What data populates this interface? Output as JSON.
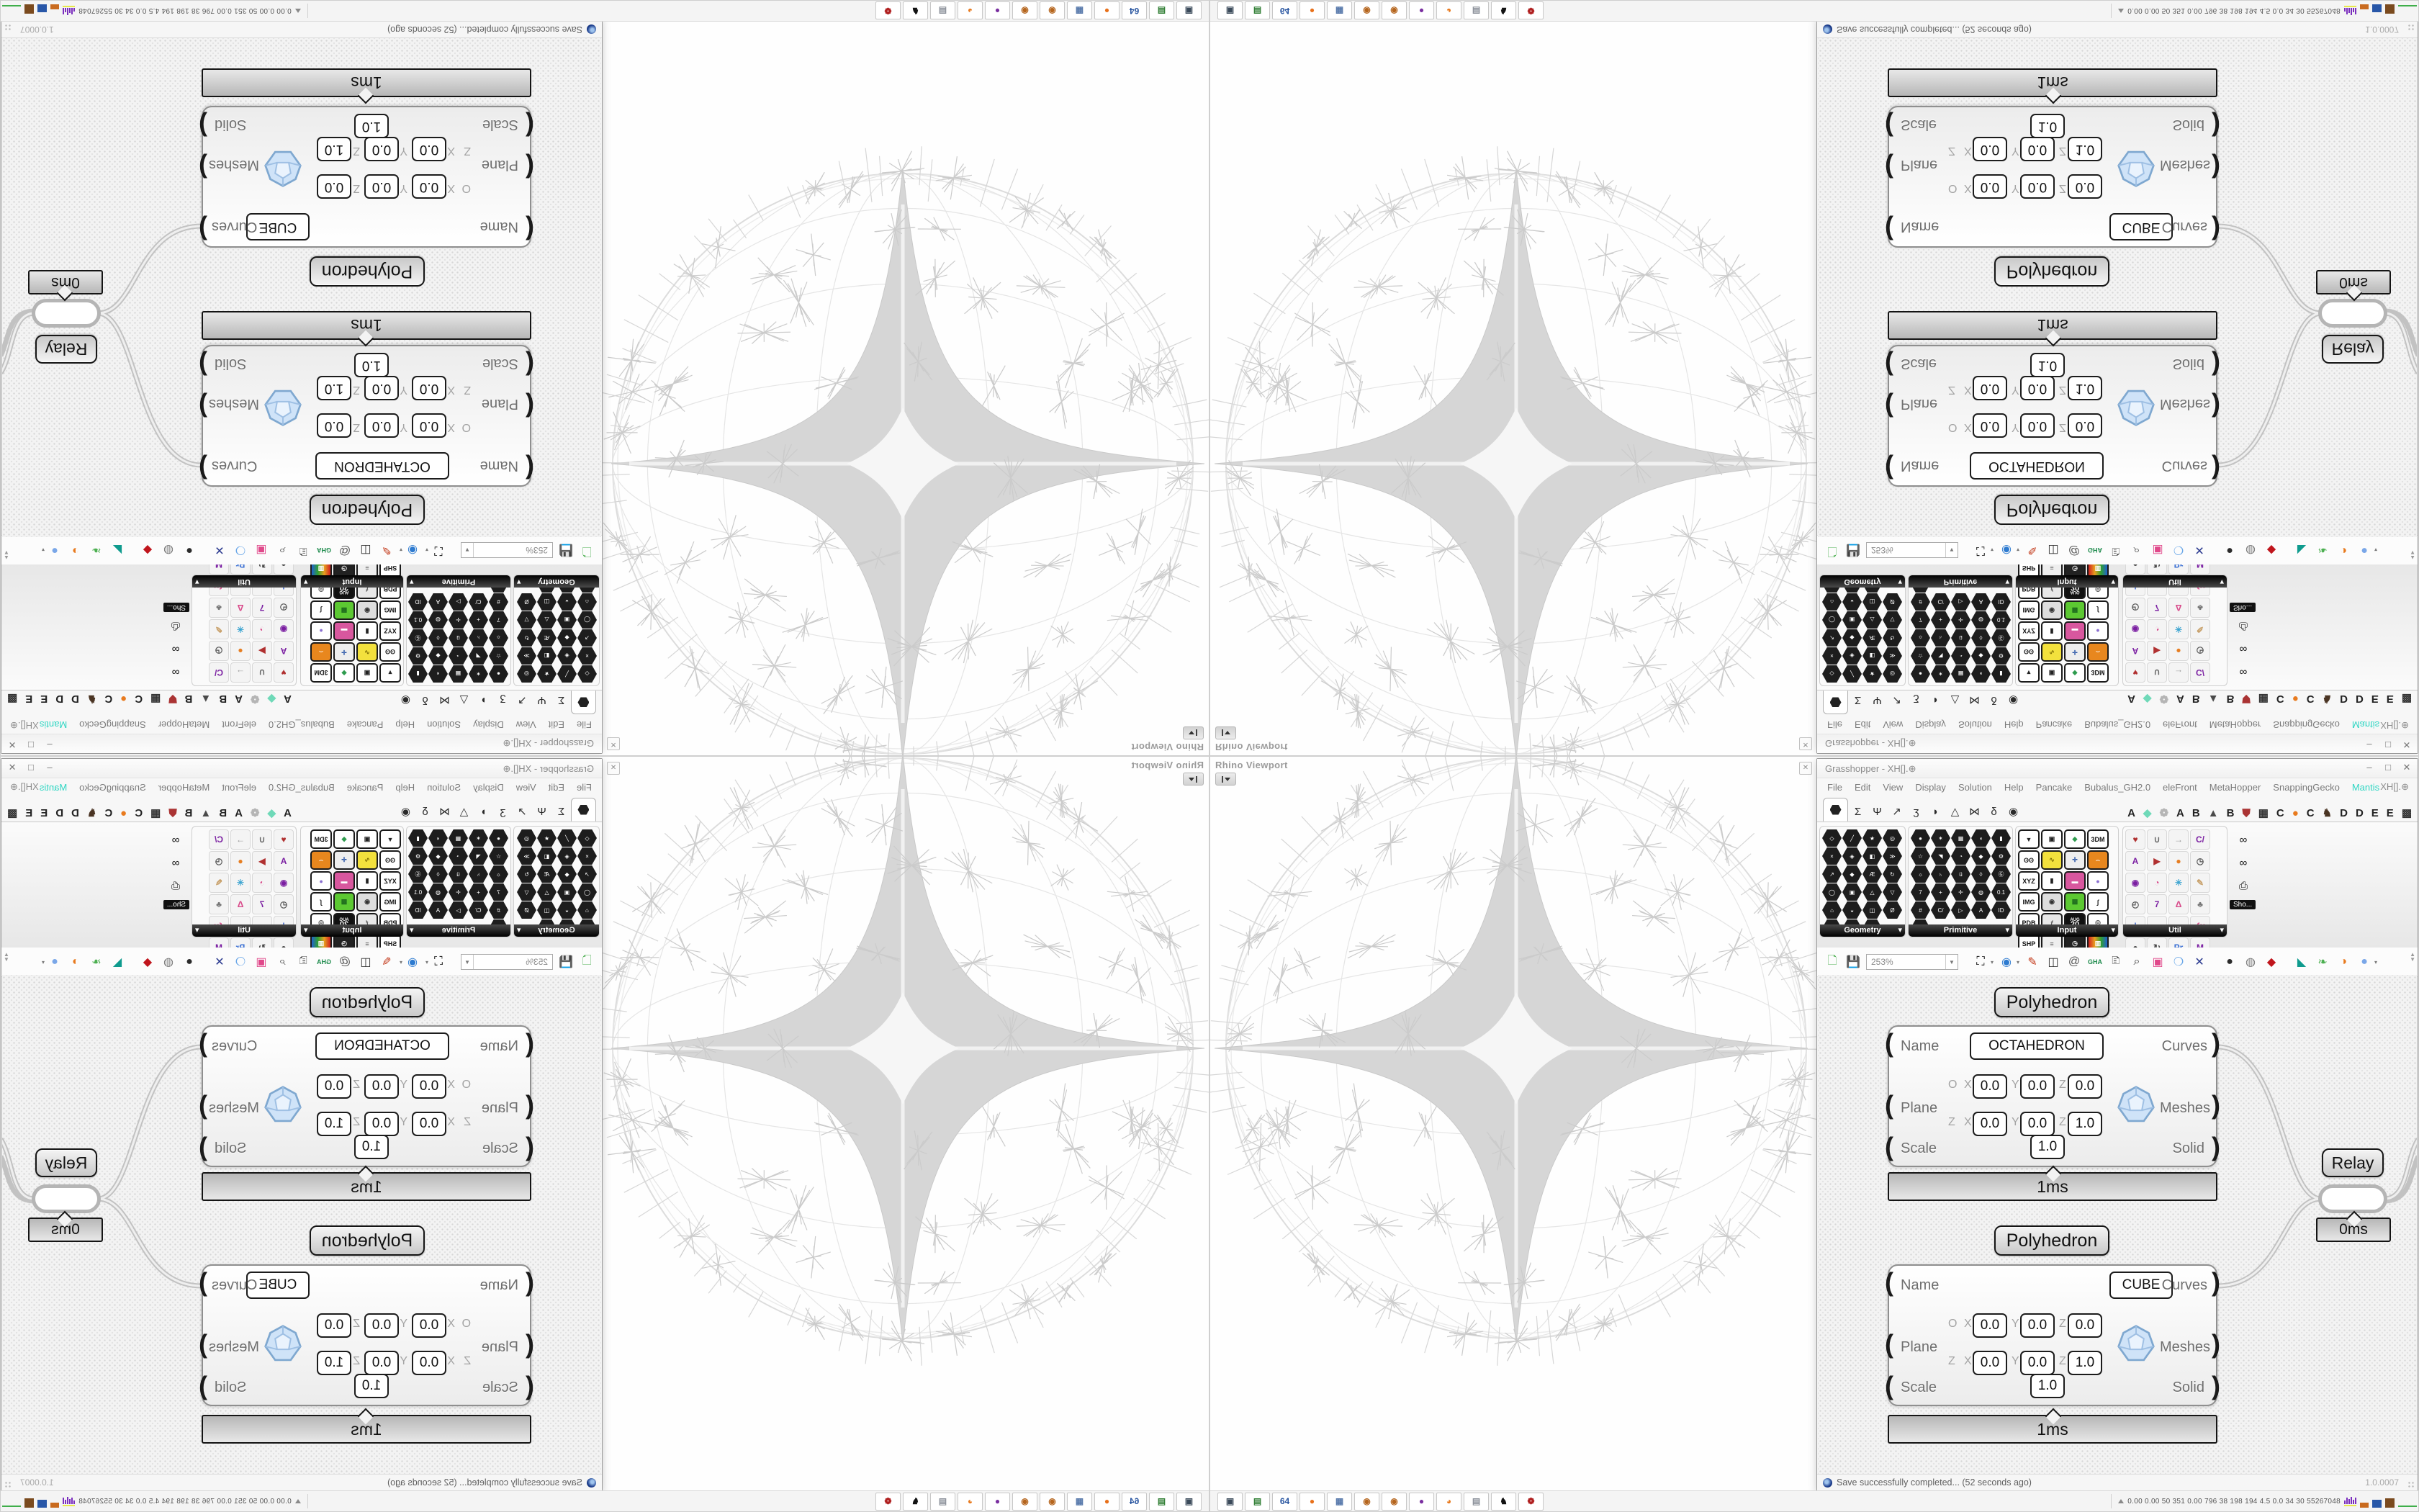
{
  "viewport": {
    "label": "Rhino Viewport"
  },
  "panel_close_glyph": "✕",
  "gh": {
    "title": "Grasshopper - XH[].⊕",
    "win_min": "–",
    "win_max": "□",
    "win_close": "✕",
    "menu": [
      "File",
      "Edit",
      "View",
      "Display",
      "Solution",
      "Help",
      "Pancake",
      "Bubalus_GH2.0",
      "eleFront",
      "MetaHopper",
      "SnappingGecko",
      "Mantis"
    ],
    "menu_right": "XH[].⊕",
    "mantis_color": "#2fd6c3",
    "tabs_main": [
      {
        "name": "params-tab"
      },
      {
        "name": "maths-tab",
        "g": "Σ"
      },
      {
        "name": "sets-tab",
        "g": "Ψ"
      },
      {
        "name": "vector-tab",
        "g": "↗"
      },
      {
        "name": "curve-tab",
        "g": "ʒ"
      },
      {
        "name": "surface-tab",
        "g": "◗"
      },
      {
        "name": "mesh-tab",
        "g": "△"
      },
      {
        "name": "intersect-tab",
        "g": "⋈"
      },
      {
        "name": "transform-tab",
        "g": "δ"
      },
      {
        "name": "display-tab",
        "g": "◉"
      }
    ],
    "tabs_plugins": [
      {
        "g": "A",
        "c": "#222222"
      },
      {
        "g": "◆",
        "c": "#6fd9b8"
      },
      {
        "g": "❁",
        "c": "#b5b5b5"
      },
      {
        "g": "A",
        "c": "#222222"
      },
      {
        "g": "B",
        "c": "#222222"
      },
      {
        "g": "▲",
        "c": "#4a4a4a"
      },
      {
        "g": "B",
        "c": "#222222"
      },
      {
        "g": "⛊",
        "c": "#aa3333"
      },
      {
        "g": "▦",
        "c": "#333333"
      },
      {
        "g": "C",
        "c": "#222222"
      },
      {
        "g": "●",
        "c": "#e87a1e"
      },
      {
        "g": "C",
        "c": "#222222"
      },
      {
        "g": "♞",
        "c": "#4a3423"
      },
      {
        "g": "D",
        "c": "#222222"
      },
      {
        "g": "D",
        "c": "#222222"
      },
      {
        "g": "E",
        "c": "#222222"
      },
      {
        "g": "E",
        "c": "#222222"
      },
      {
        "g": "▩",
        "c": "#333333"
      }
    ],
    "panels": {
      "geometry": {
        "name": "Geometry",
        "glyphs": [
          "◇",
          "╱",
          "★",
          "◎",
          "×",
          "◈",
          "◧",
          "≫",
          "↗",
          "◆",
          "Æ",
          "↻",
          "◯",
          "▣",
          "△",
          "▽",
          "⌂",
          "◒",
          "◫",
          "Ø",
          "◐",
          "✦",
          "⊂"
        ]
      },
      "primitive": {
        "name": "Primitive",
        "glyphs": [
          "●",
          "✶",
          "▦",
          "◖",
          "▮",
          "☆",
          "◥",
          "◔",
          "◆",
          "⚙",
          "☼",
          "♄",
          "ü",
          "◊",
          "Ⓖ",
          "7",
          "+",
          "✛",
          "◍",
          "0.1",
          "#",
          "C/",
          "▷",
          "A",
          "ID",
          "◠"
        ]
      },
      "input": {
        "name": "Input",
        "cells": [
          "slider",
          "frame",
          "gem",
          "3DM",
          "eyes",
          "wave",
          "axes",
          "drip",
          "XYZ",
          "toggle",
          "node",
          "ball",
          "IMG",
          "knob",
          "check",
          "graph",
          "PDB",
          "lever",
          "AUG 20",
          "target",
          "SHP",
          "list",
          "clock",
          "bars",
          "ID."
        ]
      },
      "util": {
        "name": "Util",
        "cells": [
          {
            "g": "♥",
            "c": "#b03030"
          },
          {
            "g": "∪",
            "c": "#666666"
          },
          {
            "g": "→",
            "c": "#999999"
          },
          {
            "g": "C/",
            "c": "#7b1fa2"
          },
          {
            "g": "A",
            "c": "#7b1fa2"
          },
          {
            "g": "▶",
            "c": "#b03030"
          },
          {
            "g": "●",
            "c": "#e67e22"
          },
          {
            "g": "◷",
            "c": "#555555"
          },
          {
            "g": "◉",
            "c": "#7b1fa2"
          },
          {
            "g": "◔",
            "c": "#d84a8a"
          },
          {
            "g": "✳",
            "c": "#3aa3d0"
          },
          {
            "g": "✎",
            "c": "#c8a06a"
          },
          {
            "g": "◴",
            "c": "#555555"
          },
          {
            "g": "7",
            "c": "#7b1fa2"
          },
          {
            "g": "Δ",
            "c": "#d84a8a"
          },
          {
            "g": "♣",
            "c": "#777777"
          },
          {
            "g": "!",
            "c": "#4a6fd0"
          },
          {
            "g": "☁",
            "c": "#9a9890"
          },
          {
            "g": "→",
            "c": "#555555"
          },
          {
            "g": "ƒx",
            "c": "#d84a8a"
          },
          {
            "g": "●",
            "c": "#444444"
          },
          {
            "g": "↻",
            "c": "#444444"
          },
          {
            "g": "Pr",
            "c": "#3a6fd4"
          },
          {
            "g": "M",
            "c": "#7b1fa2"
          },
          {
            "g": "❁",
            "c": "#cc8833"
          },
          {
            "g": "ABC",
            "c": "#333333"
          },
          {
            "g": "→",
            "c": "#888888"
          },
          {
            "g": "Ⓞ",
            "c": "#7b1fa2"
          },
          {
            "g": "Ⓧ",
            "c": "#7b1fa2"
          }
        ]
      },
      "show": {
        "name": "Sho...",
        "glyphs": [
          "∞",
          "∞",
          "⎙"
        ]
      }
    },
    "toolbar": {
      "zoom": "253%",
      "gha_label": "GHA"
    },
    "status": {
      "message": "Save successfully completed... (52 seconds ago)",
      "version": "1.0.0007"
    }
  },
  "canvas": {
    "components": [
      {
        "label": "Polyhedron",
        "name_value": "OCTAHEDRON",
        "in_name": "Name",
        "in_plane": "Plane",
        "in_scale": "Scale",
        "out_curves": "Curves",
        "out_meshes": "Meshes",
        "out_solid": "Solid",
        "o": "O",
        "z": "Z",
        "x": "X",
        "y": "Y",
        "ox": "0.0",
        "oy": "0.0",
        "oz": "0.0",
        "zx": "0.0",
        "zy": "0.0",
        "zz": "1.0",
        "scale_value": "1.0",
        "time": "1ms"
      },
      {
        "label": "Polyhedron",
        "name_value": "CUBE",
        "in_name": "Name",
        "in_plane": "Plane",
        "in_scale": "Scale",
        "out_curves": "Curves",
        "out_meshes": "Meshes",
        "out_solid": "Solid",
        "o": "O",
        "z": "Z",
        "x": "X",
        "y": "Y",
        "ox": "0.0",
        "oy": "0.0",
        "oz": "0.0",
        "zx": "0.0",
        "zy": "0.0",
        "zz": "1.0",
        "scale_value": "1.0",
        "time": "1ms"
      }
    ],
    "relay": {
      "label": "Relay",
      "time": "0ms"
    }
  },
  "taskbar": {
    "apps": [
      {
        "name": "screenshot-app",
        "g": "▣",
        "c": "#3a4a5a"
      },
      {
        "name": "save-manager-app",
        "g": "▤",
        "c": "#2e7d32"
      },
      {
        "name": "c64-floppy-app",
        "g": "64",
        "c": "#2855a0"
      },
      {
        "name": "firefox",
        "g": "●",
        "c": "#e8701a"
      },
      {
        "name": "calculator",
        "g": "▦",
        "c": "#5577aa"
      },
      {
        "name": "paint-app-1",
        "g": "◉",
        "c": "#b5651d"
      },
      {
        "name": "paint-app-2",
        "g": "◉",
        "c": "#b5651d"
      },
      {
        "name": "media-app",
        "g": "●",
        "c": "#7a2fa0"
      },
      {
        "name": "blender",
        "g": "◕",
        "c": "#e87a1e"
      },
      {
        "name": "scanner-app",
        "g": "▤",
        "c": "#8a8f98"
      },
      {
        "name": "cat-app",
        "g": "♞",
        "c": "#111111"
      },
      {
        "name": "medallion-app",
        "g": "❁",
        "c": "#b02020"
      }
    ],
    "tray_text": "0.00 0.00  50  351 0.00 796  38  198 194  4.5  0.0  34  30 55267048",
    "tray_colors": {
      "purple": "#7b2fbe",
      "yellow": "#e8e84a",
      "orange": "#c96a1e",
      "blue": "#2857a8",
      "brown": "#7a4a1e",
      "green": "#3fae4a"
    }
  }
}
